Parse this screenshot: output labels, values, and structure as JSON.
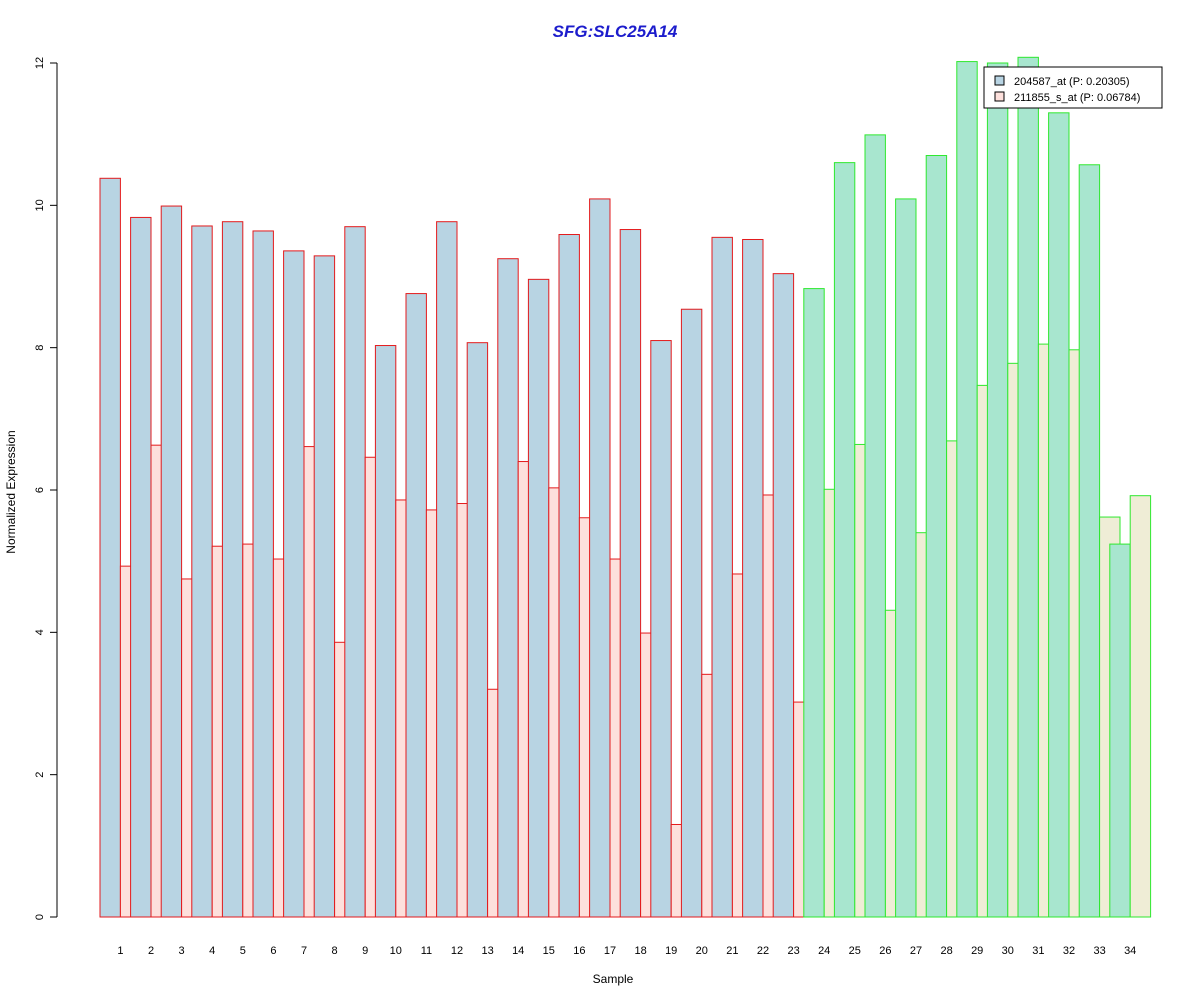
{
  "chart_data": {
    "type": "bar",
    "title": "SFG:SLC25A14",
    "xlabel": "Sample",
    "ylabel": "Normalized Expression",
    "ylim": [
      0,
      12
    ],
    "yticks": [
      "0",
      "2",
      "4",
      "6",
      "8",
      "10",
      "12"
    ],
    "categories": [
      "1",
      "2",
      "3",
      "4",
      "5",
      "6",
      "7",
      "8",
      "9",
      "10",
      "11",
      "12",
      "13",
      "14",
      "15",
      "16",
      "17",
      "18",
      "19",
      "20",
      "21",
      "22",
      "23",
      "24",
      "25",
      "26",
      "27",
      "28",
      "29",
      "30",
      "31",
      "32",
      "33",
      "34"
    ],
    "group_split_after": 23,
    "series": [
      {
        "name": "204587_at (P: 0.20305)",
        "values": [
          10.38,
          9.83,
          9.99,
          9.71,
          9.77,
          9.64,
          9.36,
          9.29,
          9.7,
          8.03,
          8.76,
          9.77,
          8.07,
          9.25,
          8.96,
          9.59,
          10.09,
          9.66,
          8.1,
          8.54,
          9.55,
          9.52,
          9.04,
          8.83,
          10.6,
          10.99,
          10.09,
          10.7,
          12.02,
          12.0,
          12.08,
          11.3,
          10.57,
          5.24
        ]
      },
      {
        "name": "211855_s_at (P: 0.06784)",
        "values": [
          4.93,
          6.63,
          4.75,
          5.21,
          5.24,
          5.03,
          6.61,
          3.86,
          6.46,
          5.86,
          5.72,
          5.81,
          3.2,
          6.4,
          6.03,
          5.61,
          5.03,
          3.99,
          1.3,
          3.41,
          4.82,
          5.93,
          3.02,
          6.01,
          6.64,
          4.31,
          5.4,
          6.69,
          7.47,
          7.78,
          8.05,
          7.97,
          5.62,
          5.92
        ]
      }
    ],
    "colors": {
      "series1_fill_group1": "#b8d4e3",
      "series2_fill_group1": "#fde0dc",
      "border_group1": "#e31a1c",
      "series1_fill_group2": "#a8e6cf",
      "series2_fill_group2": "#efedd6",
      "border_group2": "#2ee82e",
      "title": "#1c1ccc"
    },
    "legend_position": "top-right",
    "grid": false
  }
}
